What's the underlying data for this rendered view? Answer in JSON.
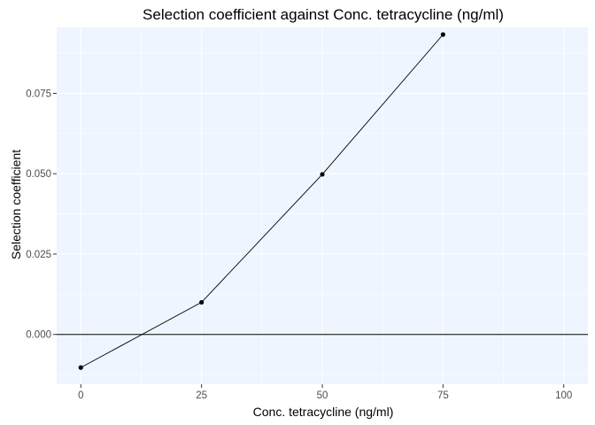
{
  "chart_data": {
    "type": "line",
    "title": "Selection coefficient against Conc. tetracycline (ng/ml)",
    "xlabel": "Conc. tetracycline (ng/ml)",
    "ylabel": "Selection coefficient",
    "x_ticks": [
      "0",
      "25",
      "50",
      "75",
      "100"
    ],
    "y_ticks": [
      "0.000",
      "0.025",
      "0.050",
      "0.075"
    ],
    "xlim": [
      -5,
      105
    ],
    "ylim": [
      -0.0155,
      0.0955
    ],
    "grid": true,
    "reference_line_y": 0,
    "series": [
      {
        "x": [
          0,
          25,
          50,
          75
        ],
        "y": [
          -0.0103,
          0.01,
          0.0498,
          0.0933
        ]
      }
    ],
    "colors": {
      "panel": "#eef5ff",
      "grid": "#ffffff",
      "line": "#000000",
      "point": "#000000",
      "reference": "#000000"
    }
  }
}
